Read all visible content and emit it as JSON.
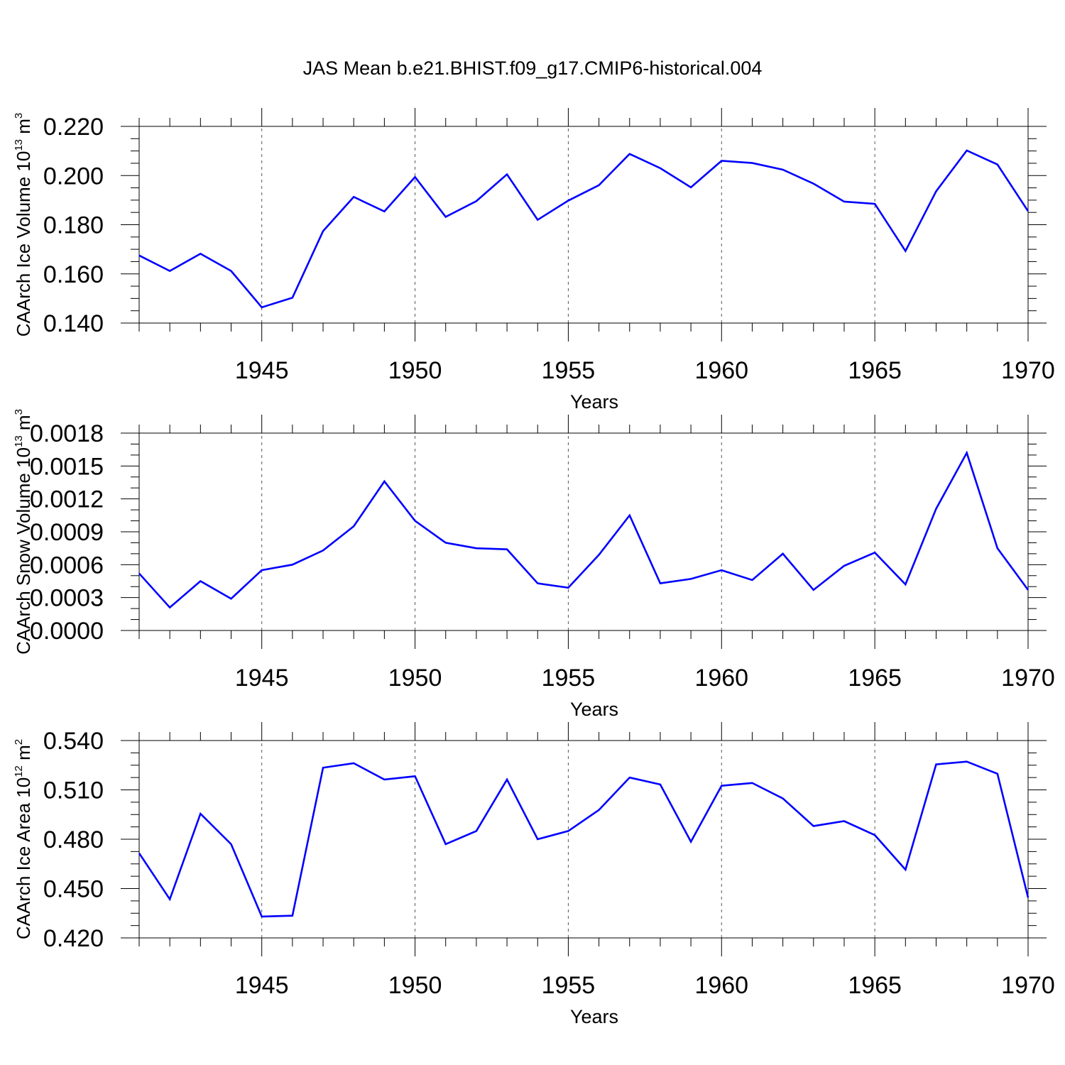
{
  "figure": {
    "title": "JAS Mean b.e21.BHIST.f09_g17.CMIP6-historical.004",
    "line_color": "#0000ff"
  },
  "chart_data": [
    {
      "type": "line",
      "title": "",
      "xlabel": "Years",
      "ylabel": {
        "prefix": "CAArch Ice Volume 10",
        "exp": "13",
        "unit": " m",
        "unit_exp": "3"
      },
      "xlim": [
        1941,
        1970
      ],
      "ylim": [
        0.14,
        0.22
      ],
      "xticks": [
        1945,
        1950,
        1955,
        1960,
        1965,
        1970
      ],
      "yticks": [
        0.14,
        0.16,
        0.18,
        0.2,
        0.22
      ],
      "ytick_labels": [
        "0.140",
        "0.160",
        "0.180",
        "0.200",
        "0.220"
      ],
      "ytick_minor_step": 0.005,
      "grid": "dashed vertical at major x ticks",
      "x": [
        1941,
        1942,
        1943,
        1944,
        1945,
        1946,
        1947,
        1948,
        1949,
        1950,
        1951,
        1952,
        1953,
        1954,
        1955,
        1956,
        1957,
        1958,
        1959,
        1960,
        1961,
        1962,
        1963,
        1964,
        1965,
        1966,
        1967,
        1968,
        1969,
        1970
      ],
      "series": [
        {
          "name": "CAArch Ice Volume",
          "values": [
            0.1675,
            0.1612,
            0.1682,
            0.1612,
            0.1464,
            0.1503,
            0.1774,
            0.1913,
            0.1854,
            0.1994,
            0.1832,
            0.1896,
            0.2005,
            0.182,
            0.1898,
            0.1961,
            0.2088,
            0.203,
            0.1952,
            0.206,
            0.2051,
            0.2024,
            0.1967,
            0.1894,
            0.1885,
            0.1693,
            0.1936,
            0.2102,
            0.2045,
            0.1855
          ]
        }
      ]
    },
    {
      "type": "line",
      "title": "",
      "xlabel": "Years",
      "ylabel": {
        "prefix": "CAArch Snow Volume 10",
        "exp": "13",
        "unit": " m",
        "unit_exp": "3"
      },
      "xlim": [
        1941,
        1970
      ],
      "ylim": [
        0.0,
        0.0018
      ],
      "xticks": [
        1945,
        1950,
        1955,
        1960,
        1965,
        1970
      ],
      "yticks": [
        0.0,
        0.0003,
        0.0006,
        0.0009,
        0.0012,
        0.0015,
        0.0018
      ],
      "ytick_labels": [
        "0.0000",
        "0.0003",
        "0.0006",
        "0.0009",
        "0.0012",
        "0.0015",
        "0.0018"
      ],
      "ytick_minor_step": 0.0001,
      "grid": "dashed vertical at major x ticks",
      "x": [
        1941,
        1942,
        1943,
        1944,
        1945,
        1946,
        1947,
        1948,
        1949,
        1950,
        1951,
        1952,
        1953,
        1954,
        1955,
        1956,
        1957,
        1958,
        1959,
        1960,
        1961,
        1962,
        1963,
        1964,
        1965,
        1966,
        1967,
        1968,
        1969,
        1970
      ],
      "series": [
        {
          "name": "CAArch Snow Volume",
          "values": [
            0.00052,
            0.00021,
            0.00045,
            0.00029,
            0.00055,
            0.0006,
            0.00073,
            0.00095,
            0.00136,
            0.001,
            0.0008,
            0.00075,
            0.00074,
            0.00043,
            0.00039,
            0.00069,
            0.00105,
            0.00043,
            0.00047,
            0.00055,
            0.00046,
            0.0007,
            0.00037,
            0.00059,
            0.00071,
            0.00042,
            0.00111,
            0.00162,
            0.00075,
            0.00037
          ]
        }
      ]
    },
    {
      "type": "line",
      "title": "",
      "xlabel": "Years",
      "ylabel": {
        "prefix": "CAArch Ice Area 10",
        "exp": "12",
        "unit": " m",
        "unit_exp": "2"
      },
      "xlim": [
        1941,
        1970
      ],
      "ylim": [
        0.42,
        0.54
      ],
      "xticks": [
        1945,
        1950,
        1955,
        1960,
        1965,
        1970
      ],
      "yticks": [
        0.42,
        0.45,
        0.48,
        0.51,
        0.54
      ],
      "ytick_labels": [
        "0.420",
        "0.450",
        "0.480",
        "0.510",
        "0.540"
      ],
      "ytick_minor_step": 0.0075,
      "grid": "dashed vertical at major x ticks",
      "x": [
        1941,
        1942,
        1943,
        1944,
        1945,
        1946,
        1947,
        1948,
        1949,
        1950,
        1951,
        1952,
        1953,
        1954,
        1955,
        1956,
        1957,
        1958,
        1959,
        1960,
        1961,
        1962,
        1963,
        1964,
        1965,
        1966,
        1967,
        1968,
        1969,
        1970
      ],
      "series": [
        {
          "name": "CAArch Ice Area",
          "values": [
            0.4715,
            0.4435,
            0.4955,
            0.477,
            0.433,
            0.4335,
            0.5235,
            0.5262,
            0.5163,
            0.5183,
            0.477,
            0.485,
            0.5163,
            0.48,
            0.485,
            0.4978,
            0.5175,
            0.5133,
            0.4785,
            0.5125,
            0.5142,
            0.5048,
            0.488,
            0.491,
            0.4825,
            0.4615,
            0.5255,
            0.5272,
            0.5198,
            0.4445
          ]
        }
      ]
    }
  ]
}
